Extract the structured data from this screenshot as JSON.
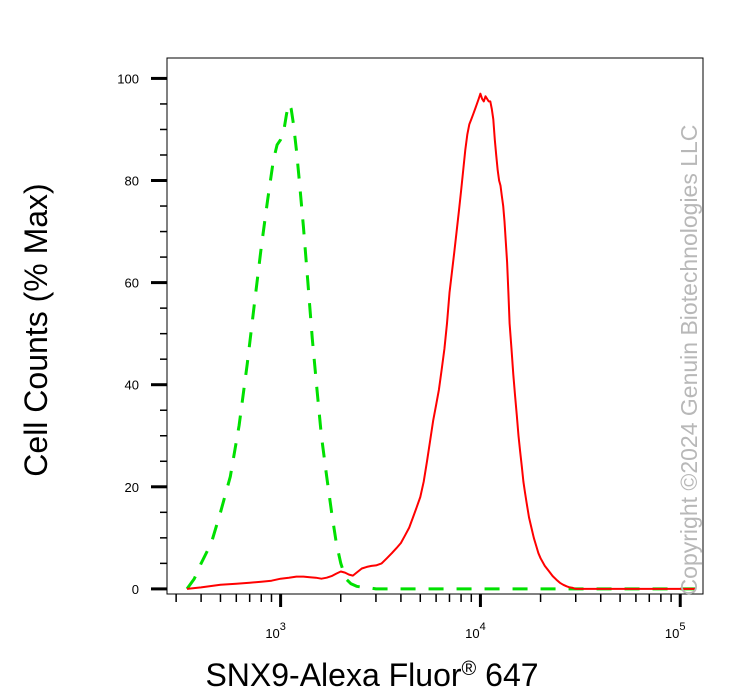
{
  "chart_data": {
    "type": "line",
    "xlabel": "SNX9-Alexa Fluor",
    "xlabel_super": "®",
    "xlabel_suffix": " 647",
    "ylabel": "Cell Counts (% Max)",
    "x_scale": "log",
    "xlim": [
      270,
      130000
    ],
    "ylim": [
      -1,
      104
    ],
    "grid": false,
    "y_ticks": [
      {
        "value": 0,
        "label": "0"
      },
      {
        "value": 20,
        "label": "20"
      },
      {
        "value": 40,
        "label": "40"
      },
      {
        "value": 60,
        "label": "60"
      },
      {
        "value": 80,
        "label": "80"
      },
      {
        "value": 100,
        "label": "100"
      }
    ],
    "x_ticks": [
      {
        "value": 1000,
        "base": "10",
        "exp": "3"
      },
      {
        "value": 10000,
        "base": "10",
        "exp": "4"
      },
      {
        "value": 100000,
        "base": "10",
        "exp": "5"
      }
    ],
    "watermark": "Copyright ©2024 Genuin Biotechnologies LLC",
    "series": [
      {
        "color": "#00e000",
        "style": "dashed",
        "x": [
          340,
          370,
          400,
          450,
          500,
          560,
          620,
          680,
          740,
          800,
          860,
          920,
          960,
          1000,
          1040,
          1070,
          1100,
          1130,
          1160,
          1200,
          1240,
          1300,
          1370,
          1440,
          1520,
          1600,
          1700,
          1800,
          1900,
          2000,
          2120,
          2250,
          2400,
          2600,
          2800,
          3000,
          3300,
          4000,
          10000,
          50000,
          120000
        ],
        "y": [
          0,
          2,
          5,
          9,
          15,
          22,
          32,
          44,
          56,
          67,
          76,
          84,
          87,
          88,
          90,
          93,
          95,
          94,
          91,
          86,
          80,
          71,
          60,
          49,
          39,
          30,
          22,
          15,
          9,
          5,
          2,
          1,
          0.5,
          0.3,
          0.2,
          0,
          0,
          0,
          0,
          0,
          0
        ]
      },
      {
        "color": "#ff0000",
        "style": "solid",
        "x": [
          340,
          400,
          500,
          600,
          700,
          800,
          900,
          1000,
          1100,
          1200,
          1300,
          1400,
          1500,
          1600,
          1700,
          1800,
          1900,
          2000,
          2100,
          2200,
          2300,
          2400,
          2550,
          2700,
          2850,
          3000,
          3200,
          3400,
          3600,
          3800,
          4000,
          4200,
          4400,
          4600,
          4800,
          5000,
          5200,
          5400,
          5600,
          5800,
          6000,
          6200,
          6400,
          6600,
          6800,
          7000,
          7200,
          7400,
          7600,
          7800,
          8000,
          8200,
          8400,
          8600,
          8800,
          9000,
          9200,
          9400,
          9600,
          9800,
          10000,
          10200,
          10400,
          10600,
          10800,
          11000,
          11200,
          11400,
          11600,
          11800,
          12000,
          12200,
          12400,
          12600,
          12800,
          13000,
          13200,
          13400,
          13600,
          13800,
          14000,
          14300,
          14600,
          14900,
          15200,
          15500,
          15800,
          16100,
          16400,
          16700,
          17000,
          17500,
          18000,
          18500,
          19000,
          19500,
          20000,
          21000,
          22000,
          23000,
          24000,
          25000,
          26000,
          27000,
          28000,
          29000,
          30000,
          32000,
          35000,
          38000,
          42000,
          50000,
          70000,
          100000,
          120000
        ],
        "y": [
          0,
          0.3,
          0.8,
          1,
          1.2,
          1.4,
          1.6,
          2,
          2.2,
          2.4,
          2.4,
          2.3,
          2.2,
          2,
          2.2,
          2.5,
          3,
          3.4,
          3.2,
          2.8,
          2.6,
          3.2,
          4,
          4.3,
          4.5,
          4.6,
          5,
          6,
          7,
          8,
          9,
          10.5,
          12,
          14,
          16,
          18,
          21,
          25,
          29,
          33,
          36,
          39,
          43,
          47,
          52,
          58,
          62,
          66,
          70,
          74,
          78,
          82,
          86,
          89,
          91,
          92,
          93,
          94,
          95,
          96,
          97,
          96,
          95.5,
          96.5,
          96,
          95.5,
          95.5,
          94,
          92,
          88,
          85,
          82,
          80,
          79,
          77,
          75,
          72,
          68,
          64,
          58,
          52,
          47,
          42,
          38,
          34,
          30,
          27,
          24,
          21,
          19,
          17,
          14,
          12,
          10,
          8.5,
          7,
          6,
          4.5,
          3.5,
          2.5,
          1.8,
          1.2,
          0.8,
          0.5,
          0.3,
          0.2,
          0,
          0,
          0,
          0,
          0,
          0,
          0,
          0,
          0
        ]
      }
    ]
  }
}
